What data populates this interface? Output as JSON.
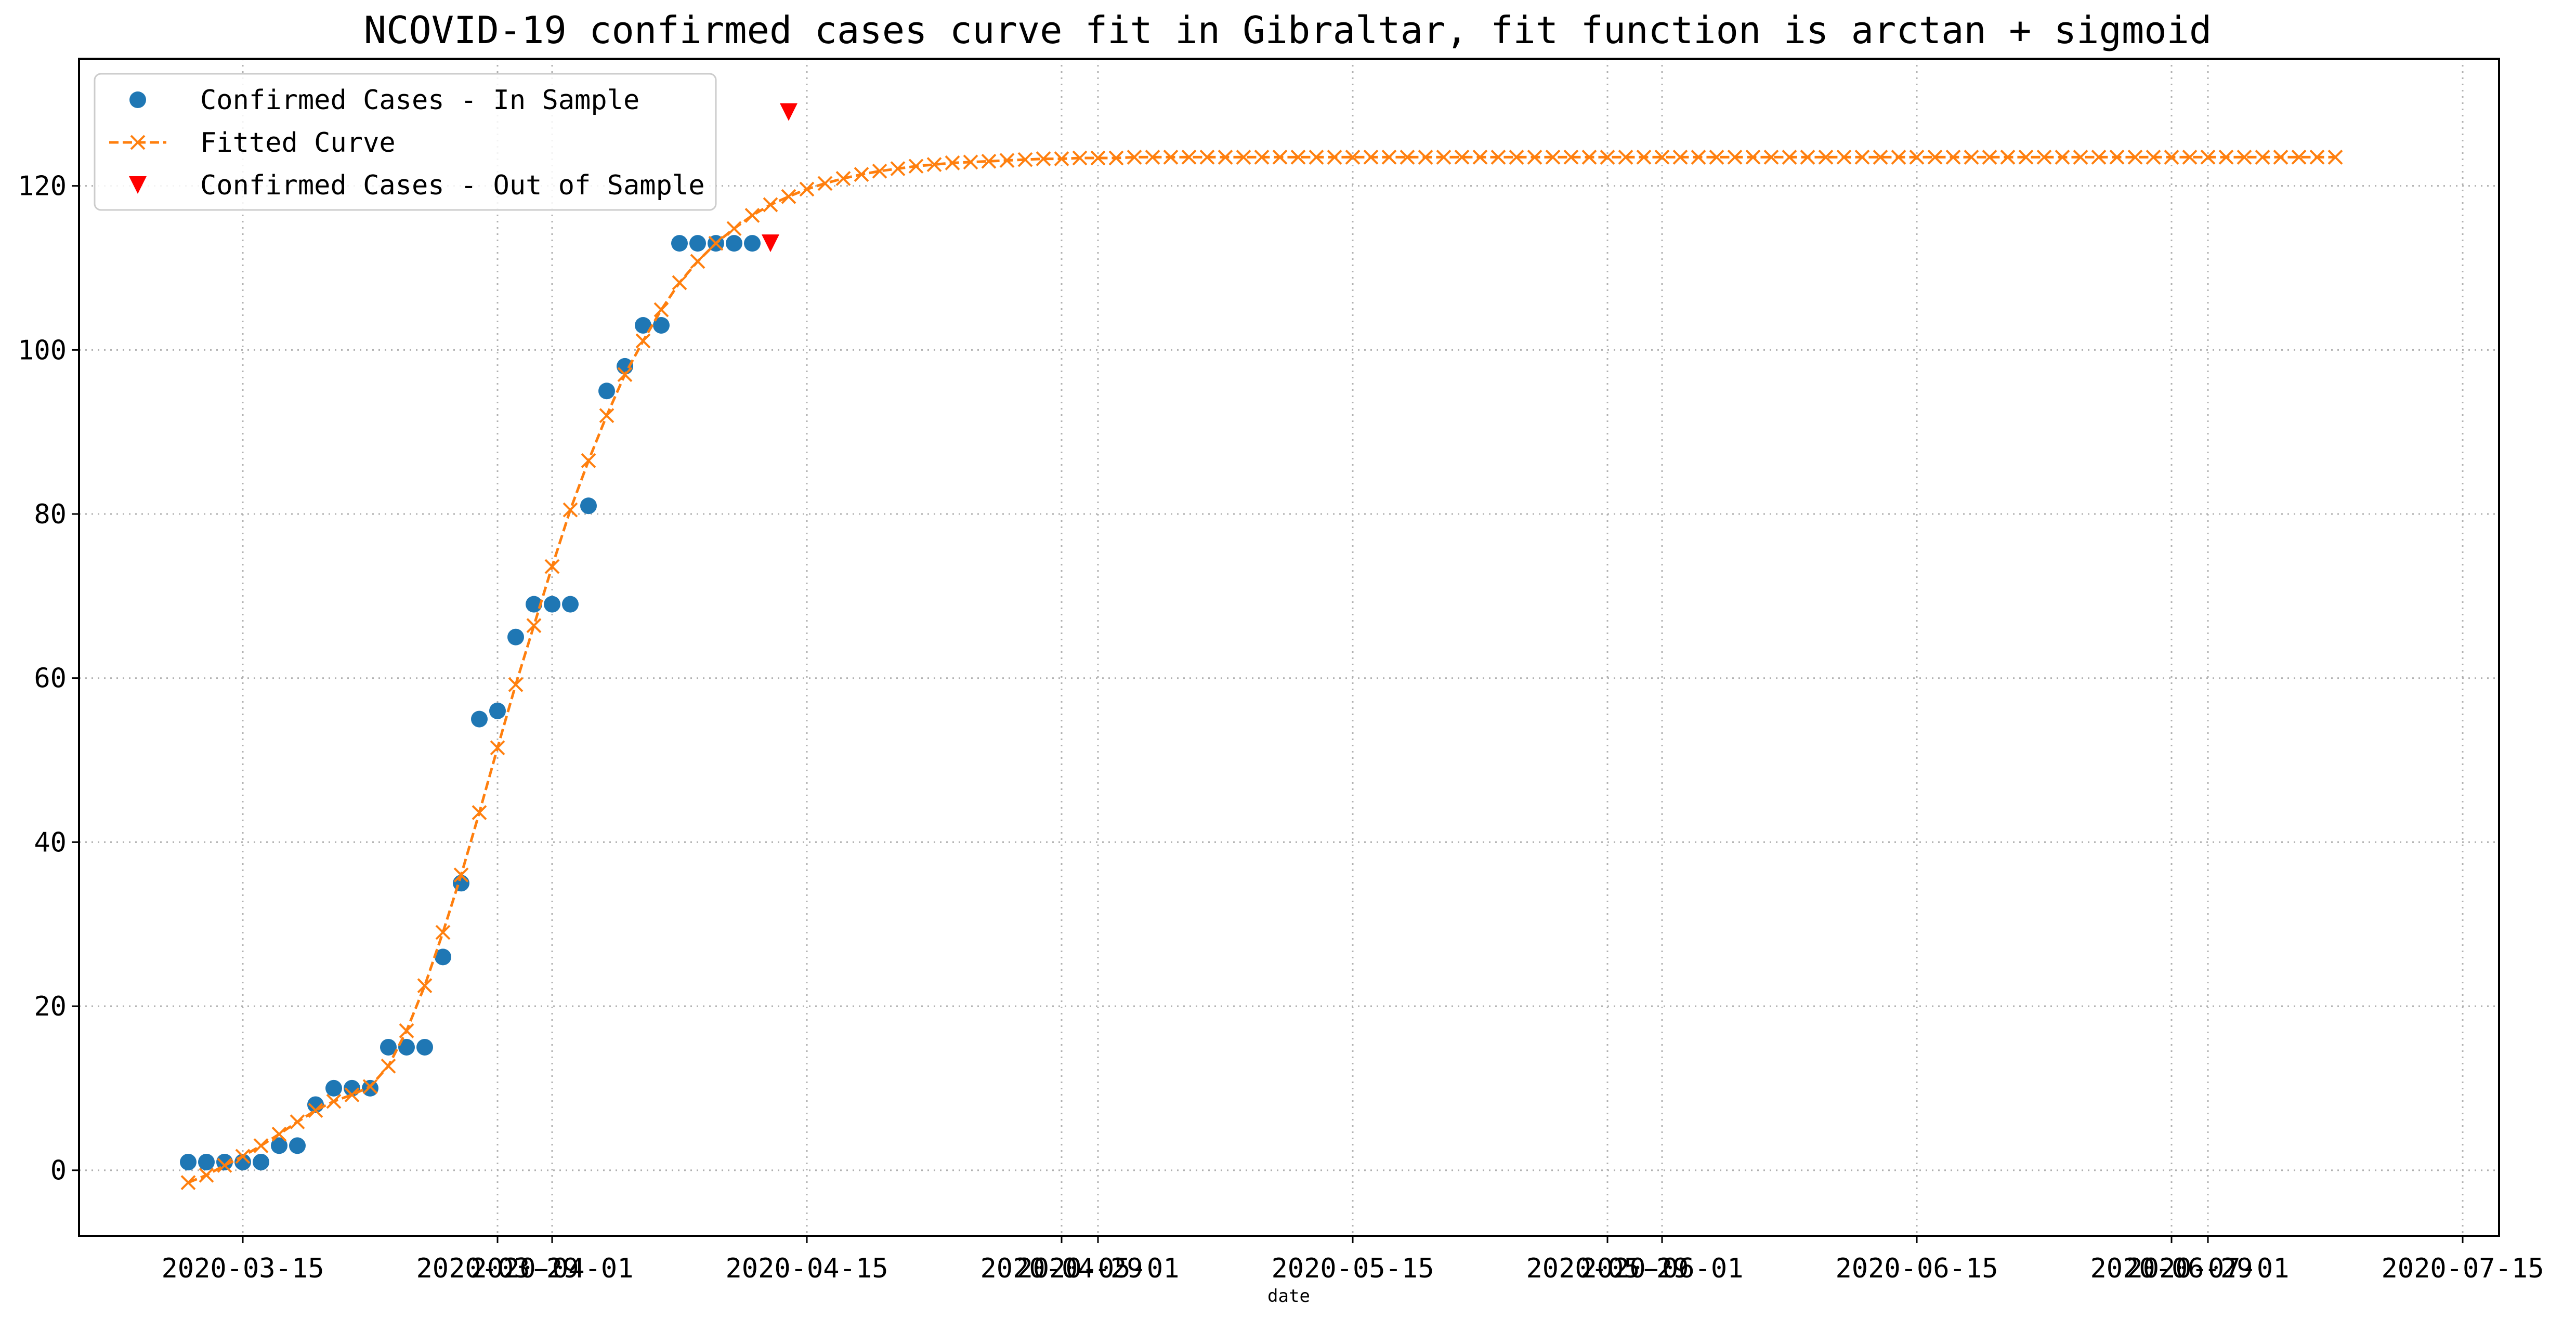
{
  "chart_data": {
    "type": "line",
    "title": "NCOVID-19 confirmed cases curve fit in Gibraltar, fit function is arctan + sigmoid",
    "xlabel": "date",
    "ylabel": "",
    "x_type": "date",
    "xlim": [
      "2020-03-06",
      "2020-07-17"
    ],
    "ylim": [
      -8,
      135.5
    ],
    "grid": true,
    "legend_position": "top-left",
    "x_tick_labels": [
      {
        "date": "2020-03-15",
        "label": "2020-03-15"
      },
      {
        "date": "2020-03-29",
        "label": "2020-03-29"
      },
      {
        "date": "2020-04-01",
        "label": "2020-04-01"
      },
      {
        "date": "2020-04-15",
        "label": "2020-04-15"
      },
      {
        "date": "2020-04-29",
        "label": "2020-04-29"
      },
      {
        "date": "2020-05-01",
        "label": "2020-05-01"
      },
      {
        "date": "2020-05-15",
        "label": "2020-05-15"
      },
      {
        "date": "2020-05-29",
        "label": "2020-05-29"
      },
      {
        "date": "2020-06-01",
        "label": "2020-06-01"
      },
      {
        "date": "2020-06-15",
        "label": "2020-06-15"
      },
      {
        "date": "2020-06-29",
        "label": "2020-06-29"
      },
      {
        "date": "2020-07-01",
        "label": "2020-07-01"
      },
      {
        "date": "2020-07-15",
        "label": "2020-07-15"
      }
    ],
    "y_ticks": [
      0,
      20,
      40,
      60,
      80,
      100,
      120
    ],
    "y_tick_labels": [
      "0",
      "20",
      "40",
      "60",
      "80",
      "100",
      "120"
    ],
    "series": [
      {
        "name": "Confirmed Cases - In Sample",
        "kind": "scatter",
        "marker": "circle",
        "color": "#1f77b4",
        "x": [
          "2020-03-12",
          "2020-03-13",
          "2020-03-14",
          "2020-03-15",
          "2020-03-16",
          "2020-03-17",
          "2020-03-18",
          "2020-03-19",
          "2020-03-20",
          "2020-03-21",
          "2020-03-22",
          "2020-03-23",
          "2020-03-24",
          "2020-03-25",
          "2020-03-26",
          "2020-03-27",
          "2020-03-28",
          "2020-03-29",
          "2020-03-30",
          "2020-03-31",
          "2020-04-01",
          "2020-04-02",
          "2020-04-03",
          "2020-04-04",
          "2020-04-05",
          "2020-04-06",
          "2020-04-07",
          "2020-04-08",
          "2020-04-09",
          "2020-04-10",
          "2020-04-11",
          "2020-04-12"
        ],
        "y": [
          1,
          1,
          1,
          1,
          1,
          3,
          3,
          8,
          10,
          10,
          10,
          15,
          15,
          15,
          26,
          35,
          55,
          56,
          65,
          69,
          69,
          69,
          81,
          95,
          98,
          103,
          103,
          113,
          113,
          113,
          113,
          113
        ]
      },
      {
        "name": "Fitted Curve",
        "kind": "line",
        "marker": "x",
        "line_style": "dashed",
        "color": "#ff7f0e",
        "x_start": "2020-03-12",
        "x_step_days": 1,
        "y": [
          -1.5,
          -0.6,
          0.6,
          1.7,
          3,
          4.4,
          5.9,
          7.3,
          8.4,
          9.2,
          10.2,
          12.7,
          17,
          22.5,
          29,
          36,
          43.6,
          51.5,
          59.2,
          66.4,
          73.6,
          80.5,
          86.5,
          92,
          97,
          101.1,
          104.9,
          108.2,
          110.8,
          113,
          114.8,
          116.4,
          117.7,
          118.7,
          119.6,
          120.3,
          120.9,
          121.4,
          121.8,
          122.1,
          122.4,
          122.6,
          122.8,
          122.9,
          123,
          123.1,
          123.2,
          123.3,
          123.3,
          123.4,
          123.4,
          123.4,
          123.5,
          123.5,
          123.5,
          123.5,
          123.5,
          123.5,
          123.5,
          123.5,
          123.5,
          123.5,
          123.5,
          123.5,
          123.5,
          123.5,
          123.5,
          123.5,
          123.5,
          123.5,
          123.5,
          123.5,
          123.5,
          123.5,
          123.5,
          123.5,
          123.5,
          123.5,
          123.5,
          123.5,
          123.5,
          123.5,
          123.5,
          123.5,
          123.5,
          123.5,
          123.5,
          123.5,
          123.5,
          123.5,
          123.5,
          123.5,
          123.5,
          123.5,
          123.5,
          123.5,
          123.5,
          123.5,
          123.5,
          123.5,
          123.5,
          123.5,
          123.5,
          123.5,
          123.5,
          123.5,
          123.5,
          123.5,
          123.5,
          123.5,
          123.5,
          123.5,
          123.5,
          123.5,
          123.5,
          123.5,
          123.5,
          123.5,
          123.5
        ]
      },
      {
        "name": "Confirmed Cases - Out of Sample",
        "kind": "scatter",
        "marker": "triangle-down",
        "color": "#ff0000",
        "x": [
          "2020-04-13",
          "2020-04-14"
        ],
        "y": [
          113,
          129
        ]
      }
    ]
  }
}
